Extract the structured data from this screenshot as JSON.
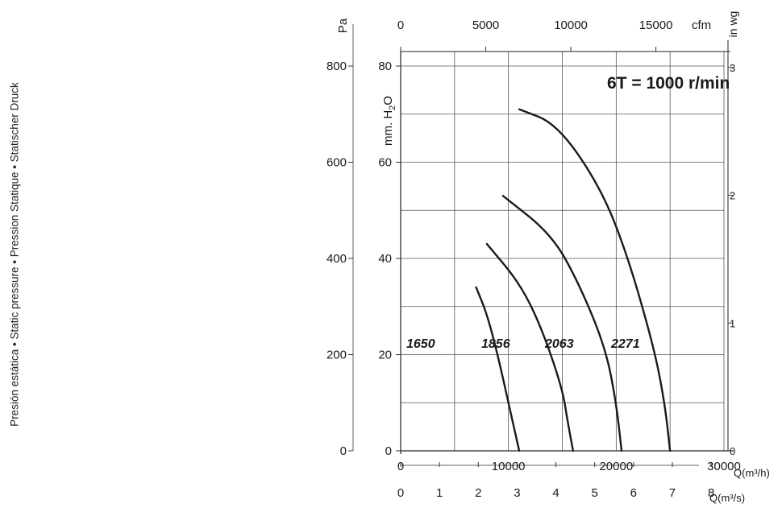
{
  "chart_data": {
    "type": "line",
    "speed_label": "6T = 1000 r/min",
    "side_label": "Presión estática • Static pressure • Pression Statique • Statischer Druck",
    "axes": {
      "pa": {
        "unit": "Pa",
        "ticks": [
          "0",
          "200",
          "400",
          "600",
          "800"
        ],
        "range": [
          0,
          800
        ]
      },
      "mmh2o": {
        "unit": "mm. H",
        "unit_sub": "2",
        "unit_end": "O",
        "ticks": [
          "0",
          "20",
          "40",
          "60",
          "80"
        ],
        "range": [
          0,
          80
        ]
      },
      "inwg": {
        "unit": "in wg",
        "ticks": [
          "0",
          "1",
          "2",
          "3"
        ],
        "range": [
          0,
          3.15
        ]
      },
      "cfm": {
        "unit": "cfm",
        "ticks": [
          "0",
          "5000",
          "10000",
          "15000"
        ],
        "range": [
          0,
          19000
        ]
      },
      "m3h": {
        "unit": "Q(m³/h)",
        "ticks": [
          "0",
          "10000",
          "20000",
          "30000"
        ],
        "range": [
          0,
          30000
        ]
      },
      "m3s": {
        "unit": "Q(m³/s)",
        "ticks": [
          "0",
          "1",
          "2",
          "3",
          "4",
          "5",
          "6",
          "7",
          "8"
        ],
        "range": [
          0,
          8.33
        ]
      }
    },
    "x_unit": "m3/h",
    "y_unit": "mm H2O",
    "grid": true,
    "series": [
      {
        "name": "1650",
        "points": [
          [
            7000,
            34
          ],
          [
            8000,
            28.5
          ],
          [
            9000,
            20
          ],
          [
            10000,
            10
          ],
          [
            11000,
            0
          ]
        ]
      },
      {
        "name": "1856",
        "points": [
          [
            8000,
            43
          ],
          [
            11000,
            35
          ],
          [
            13000,
            26
          ],
          [
            15000,
            13
          ],
          [
            15500,
            6
          ],
          [
            16000,
            0
          ]
        ]
      },
      {
        "name": "2063",
        "points": [
          [
            9500,
            53
          ],
          [
            14000,
            45
          ],
          [
            16500,
            35
          ],
          [
            19000,
            21.5
          ],
          [
            20000,
            10
          ],
          [
            20500,
            0
          ]
        ]
      },
      {
        "name": "2271",
        "points": [
          [
            11000,
            71
          ],
          [
            14500,
            68
          ],
          [
            18500,
            55
          ],
          [
            21000,
            41
          ],
          [
            23500,
            21.5
          ],
          [
            24500,
            10
          ],
          [
            25000,
            0
          ]
        ]
      }
    ]
  }
}
